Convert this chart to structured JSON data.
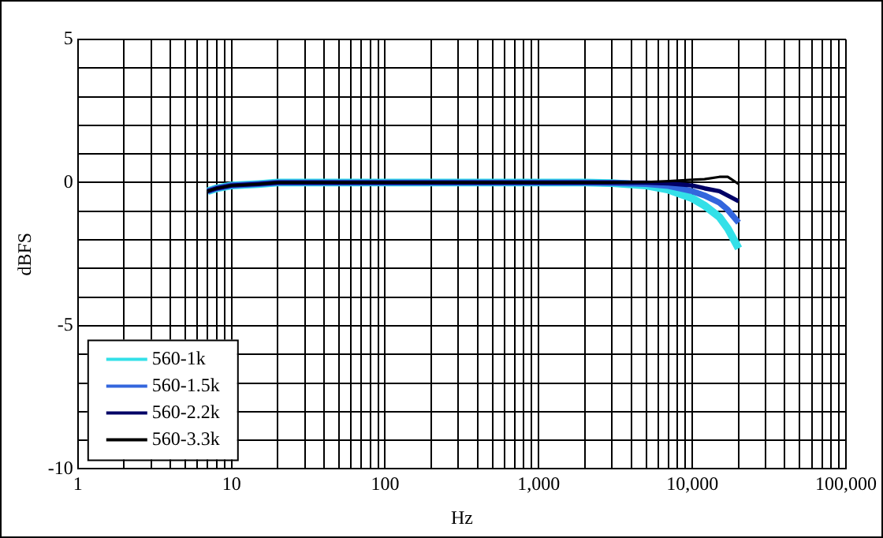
{
  "chart_data": {
    "type": "line",
    "xlabel": "Hz",
    "ylabel": "dBFS",
    "log": "x",
    "grid": true,
    "legend": "bottom left",
    "marker": "none",
    "line_style": "solid",
    "x": [
      7,
      8,
      10,
      15,
      20,
      50,
      100,
      1000,
      2000,
      3000,
      5000,
      7000,
      10000,
      12000,
      15000,
      17000,
      20000
    ],
    "xlim": [
      1,
      100000
    ],
    "ylim": [
      -10,
      5
    ],
    "xticks": [
      1,
      {
        "value": 2,
        "label": null
      },
      {
        "value": 3,
        "label": null
      },
      {
        "value": 4,
        "label": null
      },
      {
        "value": 5,
        "label": null
      },
      {
        "value": 6,
        "label": null
      },
      {
        "value": 7,
        "label": null
      },
      {
        "value": 8,
        "label": null
      },
      {
        "value": 9,
        "label": null
      },
      10,
      {
        "value": 20,
        "label": null
      },
      {
        "value": 30,
        "label": null
      },
      {
        "value": 40,
        "label": null
      },
      {
        "value": 50,
        "label": null
      },
      {
        "value": 60,
        "label": null
      },
      {
        "value": 70,
        "label": null
      },
      {
        "value": 80,
        "label": null
      },
      {
        "value": 90,
        "label": null
      },
      100,
      {
        "value": 200,
        "label": null
      },
      {
        "value": 300,
        "label": null
      },
      {
        "value": 400,
        "label": null
      },
      {
        "value": 500,
        "label": null
      },
      {
        "value": 600,
        "label": null
      },
      {
        "value": 700,
        "label": null
      },
      {
        "value": 800,
        "label": null
      },
      {
        "value": 900,
        "label": null
      },
      {
        "value": 1000,
        "label": "1,000"
      },
      {
        "value": 2000,
        "label": null
      },
      {
        "value": 3000,
        "label": null
      },
      {
        "value": 4000,
        "label": null
      },
      {
        "value": 5000,
        "label": null
      },
      {
        "value": 6000,
        "label": null
      },
      {
        "value": 7000,
        "label": null
      },
      {
        "value": 8000,
        "label": null
      },
      {
        "value": 9000,
        "label": null
      },
      {
        "value": 10000,
        "label": "10,000"
      },
      {
        "value": 20000,
        "label": null
      },
      {
        "value": 30000,
        "label": null
      },
      {
        "value": 40000,
        "label": null
      },
      {
        "value": 50000,
        "label": null
      },
      {
        "value": 60000,
        "label": null
      },
      {
        "value": 70000,
        "label": null
      },
      {
        "value": 80000,
        "label": null
      },
      {
        "value": 90000,
        "label": null
      },
      {
        "value": 100000,
        "label": "100,000"
      }
    ],
    "yticks": [
      -10,
      {
        "value": -9,
        "label": null
      },
      {
        "value": -8,
        "label": null
      },
      {
        "value": -7,
        "label": null
      },
      {
        "value": -6,
        "label": null
      },
      -5,
      {
        "value": -4,
        "label": null
      },
      {
        "value": -3,
        "label": null
      },
      {
        "value": -2,
        "label": null
      },
      {
        "value": -1,
        "label": null
      },
      0,
      {
        "value": 1,
        "label": null
      },
      {
        "value": 2,
        "label": null
      },
      {
        "value": 3,
        "label": null
      },
      {
        "value": 4,
        "label": null
      },
      5
    ],
    "series": [
      {
        "name": "560-1k",
        "color": "#33e0e8",
        "values": [
          -0.3,
          -0.2,
          -0.1,
          -0.05,
          0,
          0,
          0,
          0,
          0,
          -0.02,
          -0.1,
          -0.25,
          -0.55,
          -0.8,
          -1.2,
          -1.6,
          -2.3
        ]
      },
      {
        "name": "560-1.5k",
        "color": "#3366dd",
        "values": [
          -0.3,
          -0.2,
          -0.1,
          -0.05,
          0,
          0,
          0,
          0,
          0,
          -0.01,
          -0.05,
          -0.12,
          -0.3,
          -0.45,
          -0.7,
          -0.95,
          -1.4
        ]
      },
      {
        "name": "560-2.2k",
        "color": "#000066",
        "values": [
          -0.3,
          -0.2,
          -0.1,
          -0.05,
          0,
          0,
          0,
          0,
          0,
          0,
          0,
          -0.03,
          -0.1,
          -0.2,
          -0.3,
          -0.45,
          -0.65
        ]
      },
      {
        "name": "560-3.3k",
        "color": "#000000",
        "values": [
          -0.3,
          -0.2,
          -0.1,
          -0.05,
          0,
          0,
          0,
          0,
          0,
          0,
          0.02,
          0.05,
          0.1,
          0.12,
          0.2,
          0.2,
          -0.05
        ]
      }
    ]
  }
}
